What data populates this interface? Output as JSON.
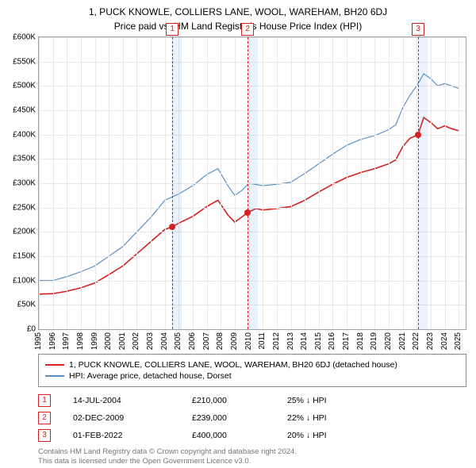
{
  "title": "1, PUCK KNOWLE, COLLIERS LANE, WOOL, WAREHAM, BH20 6DJ",
  "subtitle": "Price paid vs. HM Land Registry's House Price Index (HPI)",
  "chart": {
    "type": "line",
    "background_color": "#ffffff",
    "grid_color": "#e8e8e8",
    "border_color": "#a0a0a0",
    "x_min": 1995,
    "x_max": 2025.5,
    "y_min": 0,
    "y_max": 600000,
    "y_ticks": [
      0,
      50000,
      100000,
      150000,
      200000,
      250000,
      300000,
      350000,
      400000,
      450000,
      500000,
      550000,
      600000
    ],
    "y_tick_labels": [
      "£0",
      "£50K",
      "£100K",
      "£150K",
      "£200K",
      "£250K",
      "£300K",
      "£350K",
      "£400K",
      "£450K",
      "£500K",
      "£550K",
      "£600K"
    ],
    "x_ticks": [
      1995,
      1996,
      1997,
      1998,
      1999,
      2000,
      2001,
      2002,
      2003,
      2004,
      2005,
      2006,
      2007,
      2008,
      2009,
      2010,
      2011,
      2012,
      2013,
      2014,
      2015,
      2016,
      2017,
      2018,
      2019,
      2020,
      2021,
      2022,
      2023,
      2024,
      2025
    ],
    "series": [
      {
        "name": "hpi",
        "label": "HPI: Average price, detached house, Dorset",
        "color": "#5b8fc7",
        "line_width": 1.2,
        "data": [
          [
            1995,
            100000
          ],
          [
            1996,
            100000
          ],
          [
            1997,
            108000
          ],
          [
            1998,
            118000
          ],
          [
            1999,
            130000
          ],
          [
            2000,
            150000
          ],
          [
            2001,
            170000
          ],
          [
            2002,
            200000
          ],
          [
            2003,
            230000
          ],
          [
            2004,
            265000
          ],
          [
            2005,
            278000
          ],
          [
            2006,
            295000
          ],
          [
            2007,
            318000
          ],
          [
            2007.8,
            330000
          ],
          [
            2008.5,
            295000
          ],
          [
            2009,
            275000
          ],
          [
            2009.5,
            285000
          ],
          [
            2010,
            300000
          ],
          [
            2011,
            295000
          ],
          [
            2012,
            298000
          ],
          [
            2013,
            302000
          ],
          [
            2014,
            320000
          ],
          [
            2015,
            340000
          ],
          [
            2016,
            360000
          ],
          [
            2017,
            378000
          ],
          [
            2018,
            390000
          ],
          [
            2019,
            398000
          ],
          [
            2020,
            410000
          ],
          [
            2020.5,
            420000
          ],
          [
            2021,
            455000
          ],
          [
            2021.5,
            480000
          ],
          [
            2022,
            500000
          ],
          [
            2022.5,
            525000
          ],
          [
            2023,
            515000
          ],
          [
            2023.5,
            500000
          ],
          [
            2024,
            505000
          ],
          [
            2024.5,
            500000
          ],
          [
            2025,
            495000
          ]
        ]
      },
      {
        "name": "property",
        "label": "1, PUCK KNOWLE, COLLIERS LANE, WOOL, WAREHAM, BH20 6DJ (detached house)",
        "color": "#d62020",
        "line_width": 1.6,
        "data": [
          [
            1995,
            72000
          ],
          [
            1996,
            73000
          ],
          [
            1997,
            78000
          ],
          [
            1998,
            85000
          ],
          [
            1999,
            95000
          ],
          [
            2000,
            112000
          ],
          [
            2001,
            130000
          ],
          [
            2002,
            155000
          ],
          [
            2003,
            180000
          ],
          [
            2004,
            205000
          ],
          [
            2004.5,
            210000
          ],
          [
            2005,
            218000
          ],
          [
            2006,
            232000
          ],
          [
            2007,
            252000
          ],
          [
            2007.8,
            265000
          ],
          [
            2008.5,
            235000
          ],
          [
            2009,
            220000
          ],
          [
            2009.9,
            239000
          ],
          [
            2010.5,
            248000
          ],
          [
            2011,
            245000
          ],
          [
            2012,
            248000
          ],
          [
            2013,
            252000
          ],
          [
            2014,
            265000
          ],
          [
            2015,
            282000
          ],
          [
            2016,
            298000
          ],
          [
            2017,
            312000
          ],
          [
            2018,
            322000
          ],
          [
            2019,
            330000
          ],
          [
            2020,
            340000
          ],
          [
            2020.5,
            348000
          ],
          [
            2021,
            375000
          ],
          [
            2021.5,
            392000
          ],
          [
            2022.1,
            400000
          ],
          [
            2022.5,
            435000
          ],
          [
            2023,
            425000
          ],
          [
            2023.5,
            412000
          ],
          [
            2024,
            418000
          ],
          [
            2024.5,
            412000
          ],
          [
            2025,
            408000
          ]
        ]
      }
    ],
    "markers": [
      {
        "n": "1",
        "x": 2004.53,
        "band_width": 0.7
      },
      {
        "n": "2",
        "x": 2009.92,
        "band_width": 0.7
      },
      {
        "n": "3",
        "x": 2022.09,
        "band_width": 0.7
      }
    ],
    "points": [
      {
        "x": 2004.53,
        "y": 210000,
        "color": "#d62020"
      },
      {
        "x": 2009.92,
        "y": 239000,
        "color": "#d62020"
      },
      {
        "x": 2022.09,
        "y": 400000,
        "color": "#d62020"
      }
    ]
  },
  "legend": {
    "border_color": "#888888",
    "items": [
      {
        "color": "#d62020",
        "label": "1, PUCK KNOWLE, COLLIERS LANE, WOOL, WAREHAM, BH20 6DJ (detached house)"
      },
      {
        "color": "#5b8fc7",
        "label": "HPI: Average price, detached house, Dorset"
      }
    ]
  },
  "sales": [
    {
      "n": "1",
      "date": "14-JUL-2004",
      "price": "£210,000",
      "diff": "25%",
      "arrow": "↓",
      "suffix": "HPI"
    },
    {
      "n": "2",
      "date": "02-DEC-2009",
      "price": "£239,000",
      "diff": "22%",
      "arrow": "↓",
      "suffix": "HPI"
    },
    {
      "n": "3",
      "date": "01-FEB-2022",
      "price": "£400,000",
      "diff": "20%",
      "arrow": "↓",
      "suffix": "HPI"
    }
  ],
  "footer": {
    "line1": "Contains HM Land Registry data © Crown copyright and database right 2024.",
    "line2": "This data is licensed under the Open Government Licence v3.0."
  }
}
